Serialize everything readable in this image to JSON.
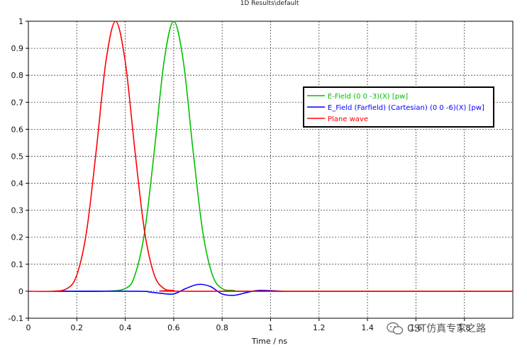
{
  "chart_data": {
    "type": "line",
    "title": "1D Results\\default",
    "xlabel": "Time / ns",
    "ylabel": "",
    "xlim": [
      0,
      2
    ],
    "ylim": [
      -0.1,
      1
    ],
    "x_ticks": [
      "0",
      "0.2",
      "0.4",
      "0.6",
      "0.8",
      "1",
      "1.2",
      "1.4",
      "1.6",
      "1.8"
    ],
    "y_ticks": [
      "-0.1",
      "0",
      "0.1",
      "0.2",
      "0.3",
      "0.4",
      "0.5",
      "0.6",
      "0.7",
      "0.8",
      "0.9",
      "1"
    ],
    "grid": true,
    "legend_position": "right",
    "series": [
      {
        "name": "E-Field (0 0 -3)(X) [pw]",
        "color": "#00c000",
        "x": [
          0.1,
          0.3,
          0.4,
          0.44,
          0.48,
          0.52,
          0.56,
          0.6,
          0.64,
          0.68,
          0.72,
          0.76,
          0.8,
          0.85,
          0.9,
          2.0
        ],
        "y": [
          0,
          0,
          0.01,
          0.06,
          0.22,
          0.52,
          0.85,
          1.0,
          0.85,
          0.52,
          0.22,
          0.06,
          0.01,
          0.003,
          0,
          0
        ]
      },
      {
        "name": "E_Field (Farfield) (Cartesian) (0 0 -6)(X) [pw]",
        "color": "#0000ff",
        "x": [
          0.1,
          0.45,
          0.5,
          0.55,
          0.6,
          0.65,
          0.7,
          0.75,
          0.8,
          0.85,
          0.9,
          0.95,
          1.05
        ],
        "y": [
          0,
          0,
          -0.003,
          -0.008,
          -0.01,
          0.01,
          0.025,
          0.018,
          -0.01,
          -0.015,
          -0.005,
          0.003,
          0
        ]
      },
      {
        "name": "Plane wave",
        "color": "#ff0000",
        "x": [
          0.0,
          0.1,
          0.16,
          0.2,
          0.24,
          0.28,
          0.32,
          0.36,
          0.4,
          0.44,
          0.48,
          0.52,
          0.56,
          0.6,
          0.66,
          2.0
        ],
        "y": [
          0,
          0,
          0.01,
          0.06,
          0.22,
          0.52,
          0.85,
          1.0,
          0.85,
          0.52,
          0.22,
          0.06,
          0.01,
          0.003,
          0,
          0
        ]
      }
    ]
  },
  "watermark": {
    "text": "CST仿真专家之路"
  }
}
